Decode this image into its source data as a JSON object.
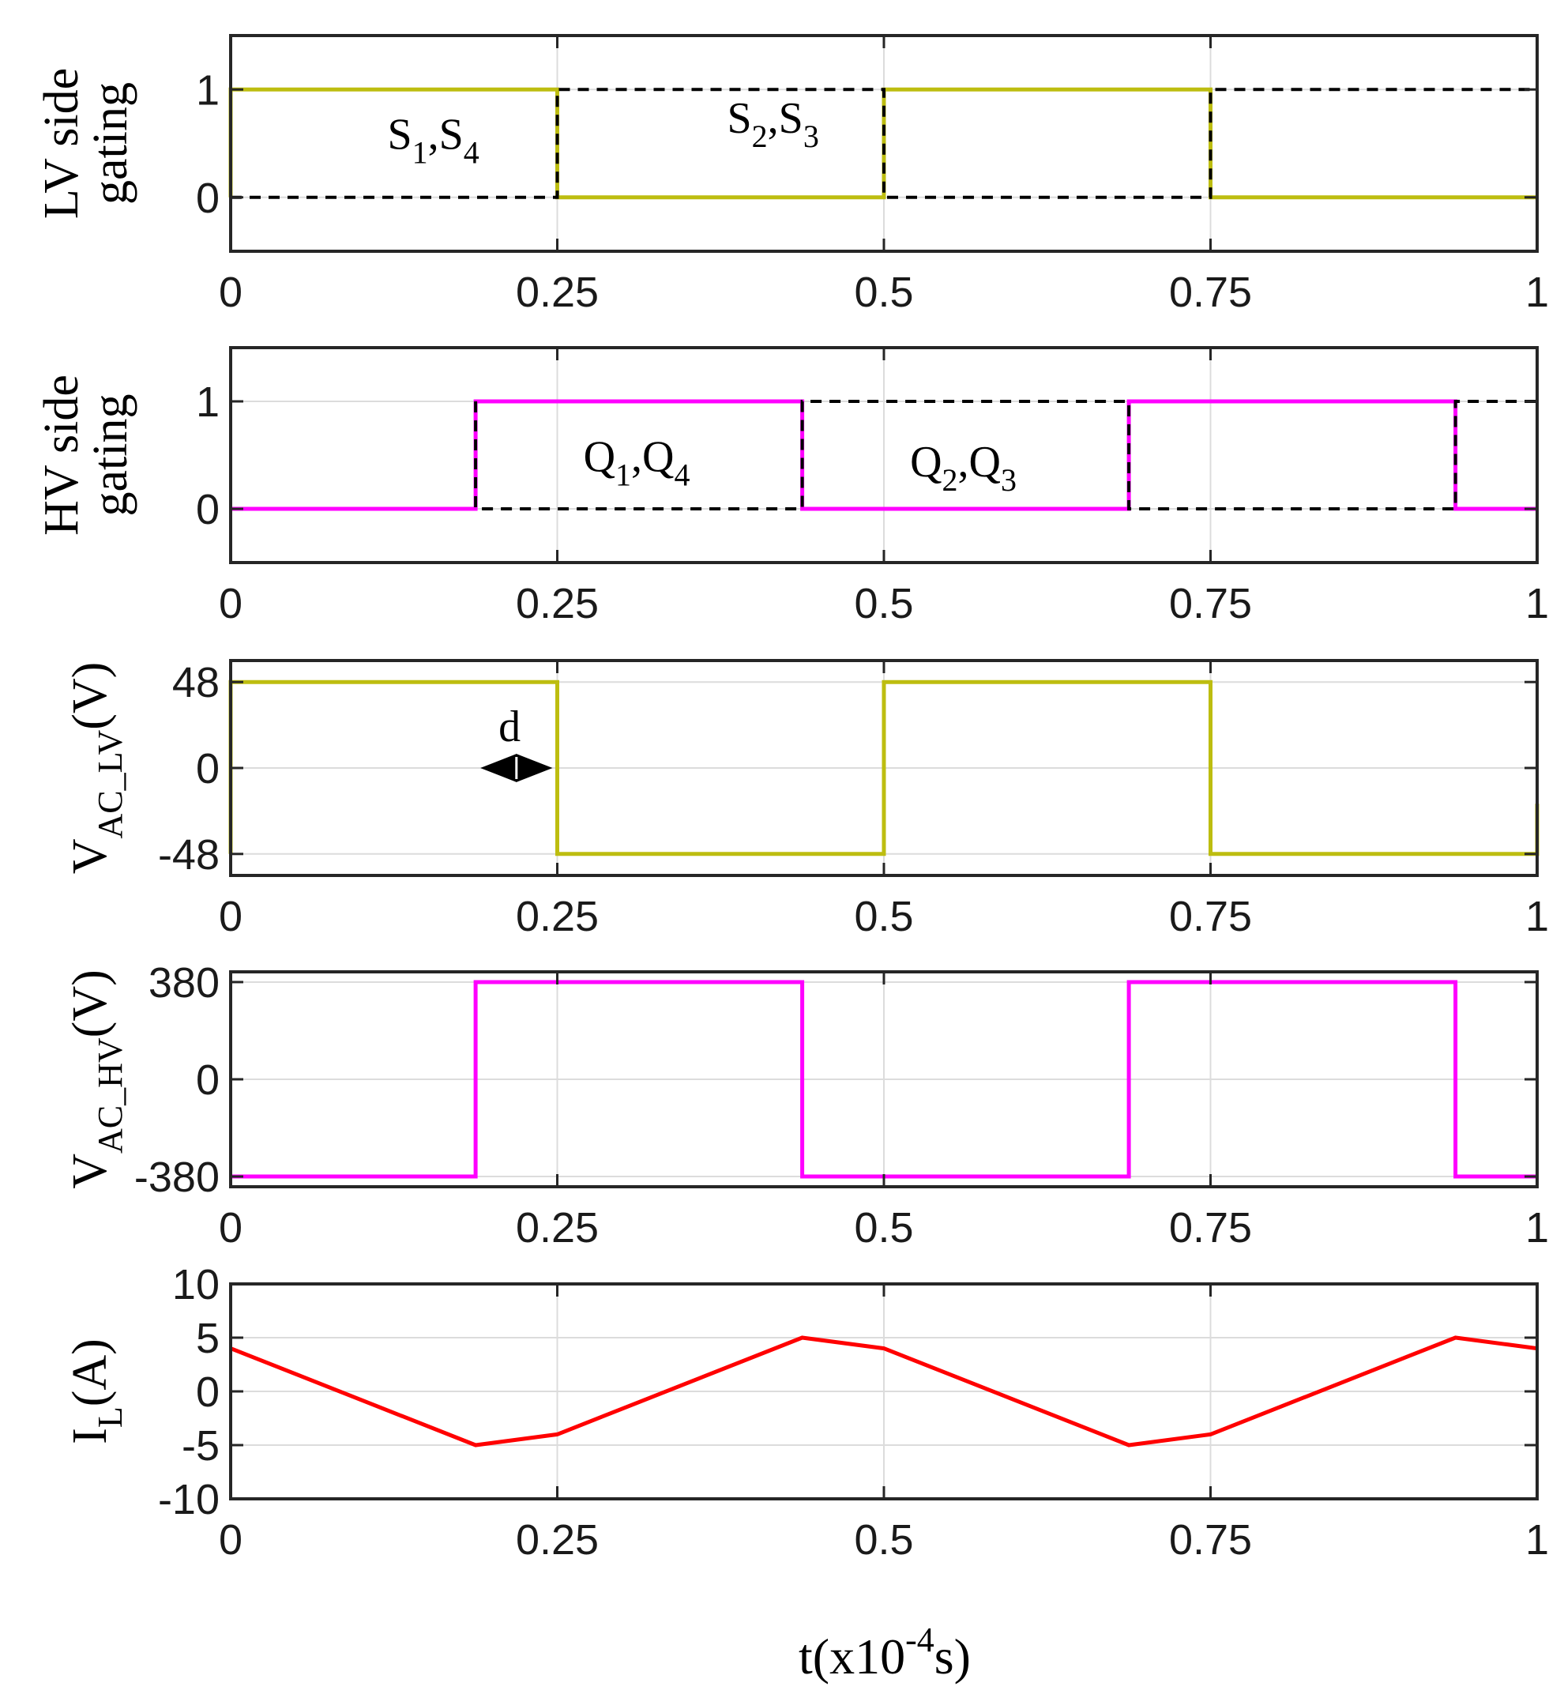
{
  "chart_data": [
    {
      "type": "line",
      "ylabel": {
        "parts": [
          {
            "text": "LV side",
            "shift": 0
          },
          {
            "text": "gating",
            "shift": 0
          }
        ],
        "lines": 2
      },
      "xlim": [
        0,
        1.0
      ],
      "ylim": [
        -0.5,
        1.5
      ],
      "xticks": [
        0,
        0.25,
        0.5,
        0.75,
        1
      ],
      "xtick_labels": [
        "0",
        "0.25",
        "0.5",
        "0.75",
        "1"
      ],
      "yticks": [
        0,
        1
      ],
      "ytick_labels": [
        "0",
        "1"
      ],
      "grid": true,
      "series": [
        {
          "name": "S1,S4 gating",
          "color": "#BDBD10",
          "style": "solid",
          "x": [
            0,
            0,
            0.25,
            0.25,
            0.5,
            0.5,
            0.75,
            0.75,
            1.0
          ],
          "y": [
            0,
            1,
            1,
            0,
            0,
            1,
            1,
            0,
            0
          ]
        },
        {
          "name": "S2,S3 gating",
          "color": "#000000",
          "style": "dashed",
          "x": [
            0,
            0.25,
            0.25,
            0.5,
            0.5,
            0.75,
            0.75,
            1.0,
            1.0
          ],
          "y": [
            0,
            0,
            1,
            1,
            0,
            0,
            1,
            1,
            0
          ]
        }
      ],
      "annotations": [
        {
          "x": 0.12,
          "y": 0.45,
          "parts": [
            {
              "t": "S"
            },
            {
              "t": "1",
              "sub": true
            },
            {
              "t": ",S"
            },
            {
              "t": "4",
              "sub": true
            }
          ]
        },
        {
          "x": 0.38,
          "y": 0.6,
          "parts": [
            {
              "t": "S"
            },
            {
              "t": "2",
              "sub": true
            },
            {
              "t": ",S"
            },
            {
              "t": "3",
              "sub": true
            }
          ]
        }
      ]
    },
    {
      "type": "line",
      "ylabel": {
        "parts": [
          {
            "text": "HV side",
            "shift": 0
          },
          {
            "text": "gating",
            "shift": 0
          }
        ],
        "lines": 2
      },
      "xlim": [
        0,
        1.0
      ],
      "ylim": [
        -0.5,
        1.5
      ],
      "xticks": [
        0,
        0.25,
        0.5,
        0.75,
        1
      ],
      "xtick_labels": [
        "0",
        "0.25",
        "0.5",
        "0.75",
        "1"
      ],
      "yticks": [
        0,
        1
      ],
      "ytick_labels": [
        "0",
        "1"
      ],
      "grid": true,
      "series": [
        {
          "name": "Q1,Q4 gating",
          "color": "#FF00FF",
          "style": "solid",
          "x": [
            0,
            0.1875,
            0.1875,
            0.4375,
            0.4375,
            0.6875,
            0.6875,
            0.9375,
            0.9375,
            1.0
          ],
          "y": [
            0,
            0,
            1,
            1,
            0,
            0,
            1,
            1,
            0,
            0
          ]
        },
        {
          "name": "Q2,Q3 gating",
          "color": "#000000",
          "style": "dashed",
          "x": [
            0.1875,
            0.1875,
            0.4375,
            0.4375,
            0.6875,
            0.6875,
            0.9375,
            0.9375,
            1.0
          ],
          "y": [
            1,
            0,
            0,
            1,
            1,
            0,
            0,
            1,
            1
          ]
        }
      ],
      "annotations": [
        {
          "x": 0.27,
          "y": 0.35,
          "parts": [
            {
              "t": "Q"
            },
            {
              "t": "1",
              "sub": true
            },
            {
              "t": ",Q"
            },
            {
              "t": "4",
              "sub": true
            }
          ]
        },
        {
          "x": 0.52,
          "y": 0.3,
          "parts": [
            {
              "t": "Q"
            },
            {
              "t": "2",
              "sub": true
            },
            {
              "t": ",Q"
            },
            {
              "t": "3",
              "sub": true
            }
          ]
        }
      ]
    },
    {
      "type": "line",
      "ylabel": {
        "parts": [
          {
            "text": "V",
            "shift": 0
          },
          {
            "text": "AC_LV",
            "shift": 1
          },
          {
            "text": "(V)",
            "shift": 0
          }
        ],
        "lines": 1
      },
      "xlim": [
        0,
        1.0
      ],
      "ylim": [
        -60,
        60
      ],
      "xticks": [
        0,
        0.25,
        0.5,
        0.75,
        1
      ],
      "xtick_labels": [
        "0",
        "0.25",
        "0.5",
        "0.75",
        "1"
      ],
      "yticks": [
        -48,
        0,
        48
      ],
      "ytick_labels": [
        "-48",
        "0",
        "48"
      ],
      "grid": true,
      "series": [
        {
          "name": "V_AC_LV",
          "color": "#BDBD10",
          "style": "solid",
          "x": [
            0,
            0,
            0.25,
            0.25,
            0.5,
            0.5,
            0.75,
            0.75,
            1.0,
            1.0
          ],
          "y": [
            -48,
            48,
            48,
            -48,
            -48,
            48,
            48,
            -48,
            -48,
            -20
          ]
        }
      ],
      "annotations": [
        {
          "x": 0.205,
          "y": 15,
          "parts": [
            {
              "t": "d"
            }
          ]
        }
      ],
      "arrow": {
        "x1": 0.1875,
        "x2": 0.25,
        "y": 0
      }
    },
    {
      "type": "line",
      "ylabel": {
        "parts": [
          {
            "text": "V",
            "shift": 0
          },
          {
            "text": "AC_HV",
            "shift": 1
          },
          {
            "text": "(V)",
            "shift": 0
          }
        ],
        "lines": 1
      },
      "xlim": [
        0,
        1.0
      ],
      "ylim": [
        -420,
        420
      ],
      "xticks": [
        0,
        0.25,
        0.5,
        0.75,
        1
      ],
      "xtick_labels": [
        "0",
        "0.25",
        "0.5",
        "0.75",
        "1"
      ],
      "yticks": [
        -380,
        0,
        380
      ],
      "ytick_labels": [
        "-380",
        "0",
        "380"
      ],
      "grid": true,
      "series": [
        {
          "name": "V_AC_HV",
          "color": "#FF00FF",
          "style": "solid",
          "x": [
            0,
            0.1875,
            0.1875,
            0.4375,
            0.4375,
            0.6875,
            0.6875,
            0.9375,
            0.9375,
            1.0
          ],
          "y": [
            -380,
            -380,
            380,
            380,
            -380,
            -380,
            380,
            380,
            -380,
            -380
          ]
        }
      ],
      "annotations": []
    },
    {
      "type": "line",
      "ylabel": {
        "parts": [
          {
            "text": "I",
            "shift": 0
          },
          {
            "text": "L",
            "shift": 1
          },
          {
            "text": "(A)",
            "shift": 0
          }
        ],
        "lines": 1
      },
      "xlim": [
        0,
        1.0
      ],
      "ylim": [
        -10,
        10
      ],
      "xticks": [
        0,
        0.25,
        0.5,
        0.75,
        1
      ],
      "xtick_labels": [
        "0",
        "0.25",
        "0.5",
        "0.75",
        "1"
      ],
      "yticks": [
        -10,
        -5,
        0,
        5,
        10
      ],
      "ytick_labels": [
        "-10",
        "-5",
        "0",
        "5",
        "10"
      ],
      "grid": true,
      "series": [
        {
          "name": "I_L",
          "color": "#FF0000",
          "style": "solid",
          "x": [
            0,
            0.1875,
            0.25,
            0.4375,
            0.5,
            0.6875,
            0.75,
            0.9375,
            1.0
          ],
          "y": [
            4,
            -5,
            -4,
            5,
            4,
            -5,
            -4,
            5,
            4
          ]
        }
      ],
      "annotations": []
    }
  ],
  "xlabel": {
    "base": "t(x10",
    "sup": "-4",
    "tail": "s)"
  }
}
